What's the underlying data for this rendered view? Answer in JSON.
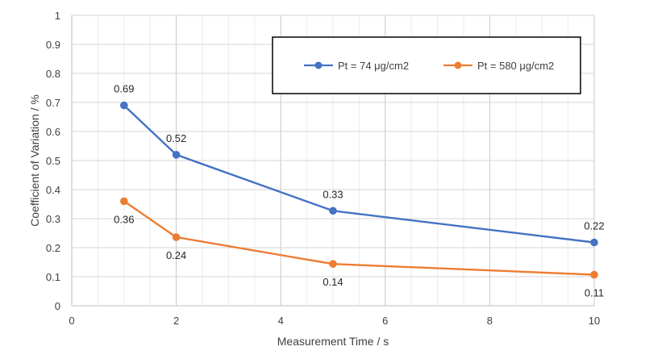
{
  "chart_data": {
    "type": "line",
    "title": "",
    "xlabel": "Measurement Time / s",
    "ylabel": "Coefficient of Variation / %",
    "xlim": [
      0,
      10
    ],
    "ylim": [
      0,
      1
    ],
    "x_ticks": [
      "0",
      "2",
      "4",
      "6",
      "8",
      "10"
    ],
    "y_ticks": [
      "0",
      "0.1",
      "0.2",
      "0.3",
      "0.4",
      "0.5",
      "0.6",
      "0.7",
      "0.8",
      "0.9",
      "1"
    ],
    "grid": true,
    "legend_position": "top-right",
    "series": [
      {
        "name": "Pt = 74 μg/cm2",
        "color": "#4472C4",
        "x": [
          1,
          2,
          5,
          10
        ],
        "values": [
          0.69,
          0.52,
          0.327,
          0.218
        ],
        "labels": [
          "0.69",
          "0.52",
          "0.33",
          "0.22"
        ],
        "label_position": "above"
      },
      {
        "name": "Pt = 580 μg/cm2",
        "color": "#ED7D31",
        "x": [
          1,
          2,
          5,
          10
        ],
        "values": [
          0.36,
          0.236,
          0.144,
          0.107
        ],
        "labels": [
          "0.36",
          "0.24",
          "0.14",
          "0.11"
        ],
        "label_position": "below"
      }
    ]
  }
}
